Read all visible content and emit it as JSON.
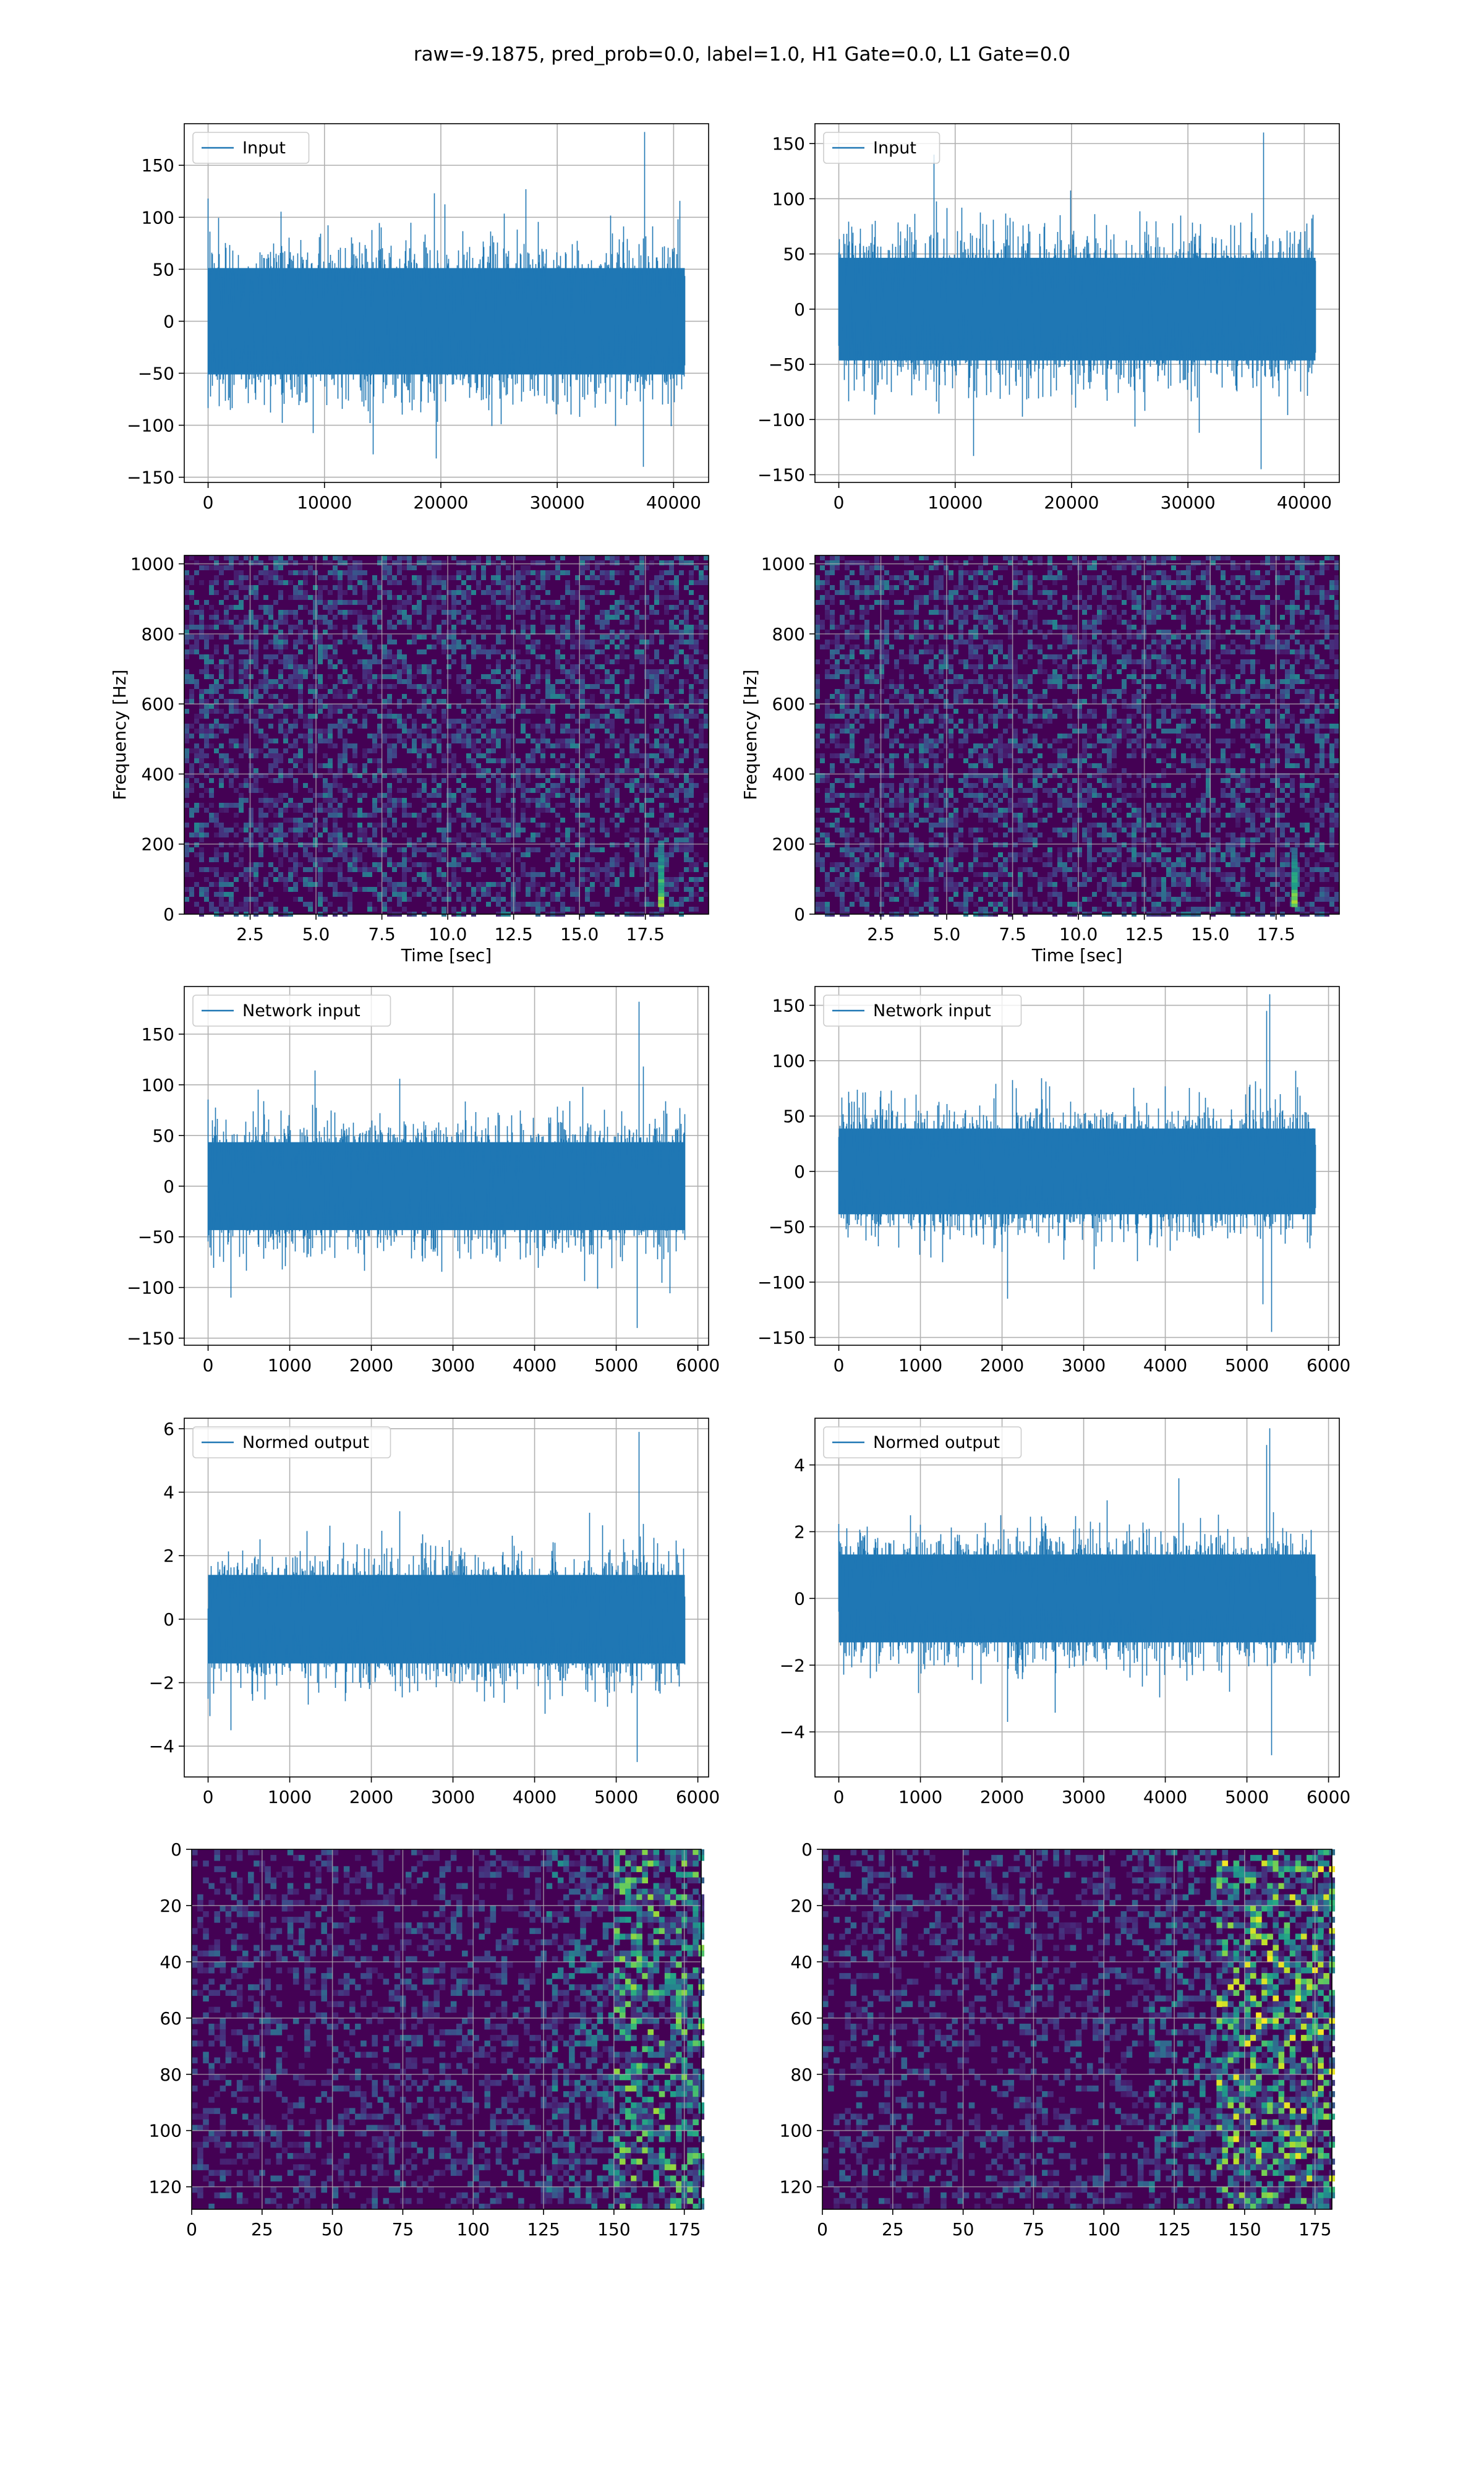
{
  "figure": {
    "title": "raw=-9.1875, pred_prob=0.0, label=1.0, H1 Gate=0.0, L1 Gate=0.0"
  },
  "colors": {
    "line": "#1f77b4",
    "grid": "#b0b0b0",
    "viridis_low": "#440154",
    "viridis_mid": "#21918c",
    "viridis_high": "#fde725"
  },
  "chart_data": [
    {
      "id": "input-left",
      "type": "line",
      "legend": "Input",
      "legend_loc": "upper-left",
      "xlim": [
        -2048,
        43008
      ],
      "ylim": [
        -155,
        190
      ],
      "xticks": [
        0,
        10000,
        20000,
        30000,
        40000
      ],
      "yticks": [
        -150,
        -100,
        -50,
        0,
        50,
        100,
        150
      ],
      "grid": true,
      "x_range": [
        0,
        40960
      ],
      "envelope_sigma": 33,
      "extremes": [
        {
          "x": 0,
          "y": 118
        },
        {
          "x": 37500,
          "y": 182
        },
        {
          "x": 37400,
          "y": -140
        },
        {
          "x": 14200,
          "y": -128
        },
        {
          "x": 19600,
          "y": -132
        },
        {
          "x": 27300,
          "y": 127
        }
      ]
    },
    {
      "id": "input-right",
      "type": "line",
      "legend": "Input",
      "legend_loc": "upper-left",
      "xlim": [
        -2048,
        43008
      ],
      "ylim": [
        -157,
        168
      ],
      "xticks": [
        0,
        10000,
        20000,
        30000,
        40000
      ],
      "yticks": [
        -150,
        -100,
        -50,
        0,
        50,
        100,
        150
      ],
      "grid": true,
      "x_range": [
        0,
        40960
      ],
      "envelope_sigma": 30,
      "extremes": [
        {
          "x": 36500,
          "y": 160
        },
        {
          "x": 36300,
          "y": -145
        },
        {
          "x": 11600,
          "y": -133
        },
        {
          "x": 8200,
          "y": 140
        },
        {
          "x": 31000,
          "y": -112
        }
      ]
    },
    {
      "id": "spectrogram-left",
      "type": "heatmap",
      "xlabel": "Time [sec]",
      "ylabel": "Frequency [Hz]",
      "xlim": [
        0,
        19.9
      ],
      "ylim": [
        0,
        1024
      ],
      "xticks": [
        "2.5",
        "5.0",
        "7.5",
        "10.0",
        "12.5",
        "15.0",
        "17.5"
      ],
      "yticks": [
        "0",
        "200",
        "400",
        "600",
        "800",
        "1000"
      ],
      "grid": true,
      "colormap": "viridis",
      "hotspots": [
        {
          "x": 18.1,
          "y_from": 20,
          "y_to": 210,
          "level": 0.95
        }
      ]
    },
    {
      "id": "spectrogram-right",
      "type": "heatmap",
      "xlabel": "Time [sec]",
      "ylabel": "Frequency [Hz]",
      "xlim": [
        0,
        19.9
      ],
      "ylim": [
        0,
        1024
      ],
      "xticks": [
        "2.5",
        "5.0",
        "7.5",
        "10.0",
        "12.5",
        "15.0",
        "17.5"
      ],
      "yticks": [
        "0",
        "200",
        "400",
        "600",
        "800",
        "1000"
      ],
      "grid": true,
      "colormap": "viridis",
      "hotspots": [
        {
          "x": 18.2,
          "y_from": 20,
          "y_to": 190,
          "level": 0.9
        }
      ]
    },
    {
      "id": "network-input-left",
      "type": "line",
      "legend": "Network input",
      "legend_loc": "upper-left",
      "xlim": [
        -292,
        6132
      ],
      "ylim": [
        -157,
        197
      ],
      "xticks": [
        0,
        1000,
        2000,
        3000,
        4000,
        5000,
        6000
      ],
      "yticks": [
        -150,
        -100,
        -50,
        0,
        50,
        100,
        150
      ],
      "grid": true,
      "x_range": [
        0,
        5840
      ],
      "envelope_sigma": 28,
      "extremes": [
        {
          "x": 5280,
          "y": 182
        },
        {
          "x": 5260,
          "y": -140
        },
        {
          "x": 280,
          "y": -110
        },
        {
          "x": 2350,
          "y": 106
        },
        {
          "x": 5330,
          "y": 118
        }
      ]
    },
    {
      "id": "network-input-right",
      "type": "line",
      "legend": "Network input",
      "legend_loc": "upper-left",
      "xlim": [
        -292,
        6132
      ],
      "ylim": [
        -157,
        167
      ],
      "xticks": [
        0,
        1000,
        2000,
        3000,
        4000,
        5000,
        6000
      ],
      "yticks": [
        -150,
        -100,
        -50,
        0,
        50,
        100,
        150
      ],
      "grid": true,
      "x_range": [
        0,
        5840
      ],
      "envelope_sigma": 25,
      "extremes": [
        {
          "x": 5280,
          "y": 160
        },
        {
          "x": 5240,
          "y": 145
        },
        {
          "x": 5300,
          "y": -145
        },
        {
          "x": 2070,
          "y": -115
        },
        {
          "x": 5200,
          "y": -120
        }
      ]
    },
    {
      "id": "normed-output-left",
      "type": "line",
      "legend": "Normed output",
      "legend_loc": "upper-left",
      "xlim": [
        -292,
        6132
      ],
      "ylim": [
        -4.97,
        6.33
      ],
      "xticks": [
        0,
        1000,
        2000,
        3000,
        4000,
        5000,
        6000
      ],
      "yticks": [
        -4,
        -2,
        0,
        2,
        4,
        6
      ],
      "grid": true,
      "x_range": [
        0,
        5840
      ],
      "envelope_sigma": 0.9,
      "extremes": [
        {
          "x": 5280,
          "y": 5.9
        },
        {
          "x": 5260,
          "y": -4.5
        },
        {
          "x": 280,
          "y": -3.5
        },
        {
          "x": 2350,
          "y": 3.4
        },
        {
          "x": 5330,
          "y": 3.0
        }
      ]
    },
    {
      "id": "normed-output-right",
      "type": "line",
      "legend": "Normed output",
      "legend_loc": "upper-left",
      "xlim": [
        -292,
        6132
      ],
      "ylim": [
        -5.35,
        5.4
      ],
      "xticks": [
        0,
        1000,
        2000,
        3000,
        4000,
        5000,
        6000
      ],
      "yticks": [
        -4,
        -2,
        0,
        2,
        4
      ],
      "grid": true,
      "x_range": [
        0,
        5840
      ],
      "envelope_sigma": 0.85,
      "extremes": [
        {
          "x": 5280,
          "y": 5.1
        },
        {
          "x": 5240,
          "y": 4.6
        },
        {
          "x": 5300,
          "y": -4.7
        },
        {
          "x": 2070,
          "y": -3.7
        },
        {
          "x": 4170,
          "y": 3.6
        }
      ]
    },
    {
      "id": "feature-map-left",
      "type": "heatmap",
      "xlim": [
        0,
        181
      ],
      "ylim": [
        128,
        0
      ],
      "xticks": [
        "0",
        "25",
        "50",
        "75",
        "100",
        "125",
        "150",
        "175"
      ],
      "yticks": [
        "0",
        "20",
        "40",
        "60",
        "80",
        "100",
        "120"
      ],
      "grid": true,
      "colormap": "viridis",
      "bright_from_column": 150,
      "bright_level": 0.85
    },
    {
      "id": "feature-map-right",
      "type": "heatmap",
      "xlim": [
        0,
        181
      ],
      "ylim": [
        128,
        0
      ],
      "xticks": [
        "0",
        "25",
        "50",
        "75",
        "100",
        "125",
        "150",
        "175"
      ],
      "yticks": [
        "0",
        "20",
        "40",
        "60",
        "80",
        "100",
        "120"
      ],
      "grid": true,
      "colormap": "viridis",
      "bright_from_column": 140,
      "bright_level": 1.0
    }
  ]
}
